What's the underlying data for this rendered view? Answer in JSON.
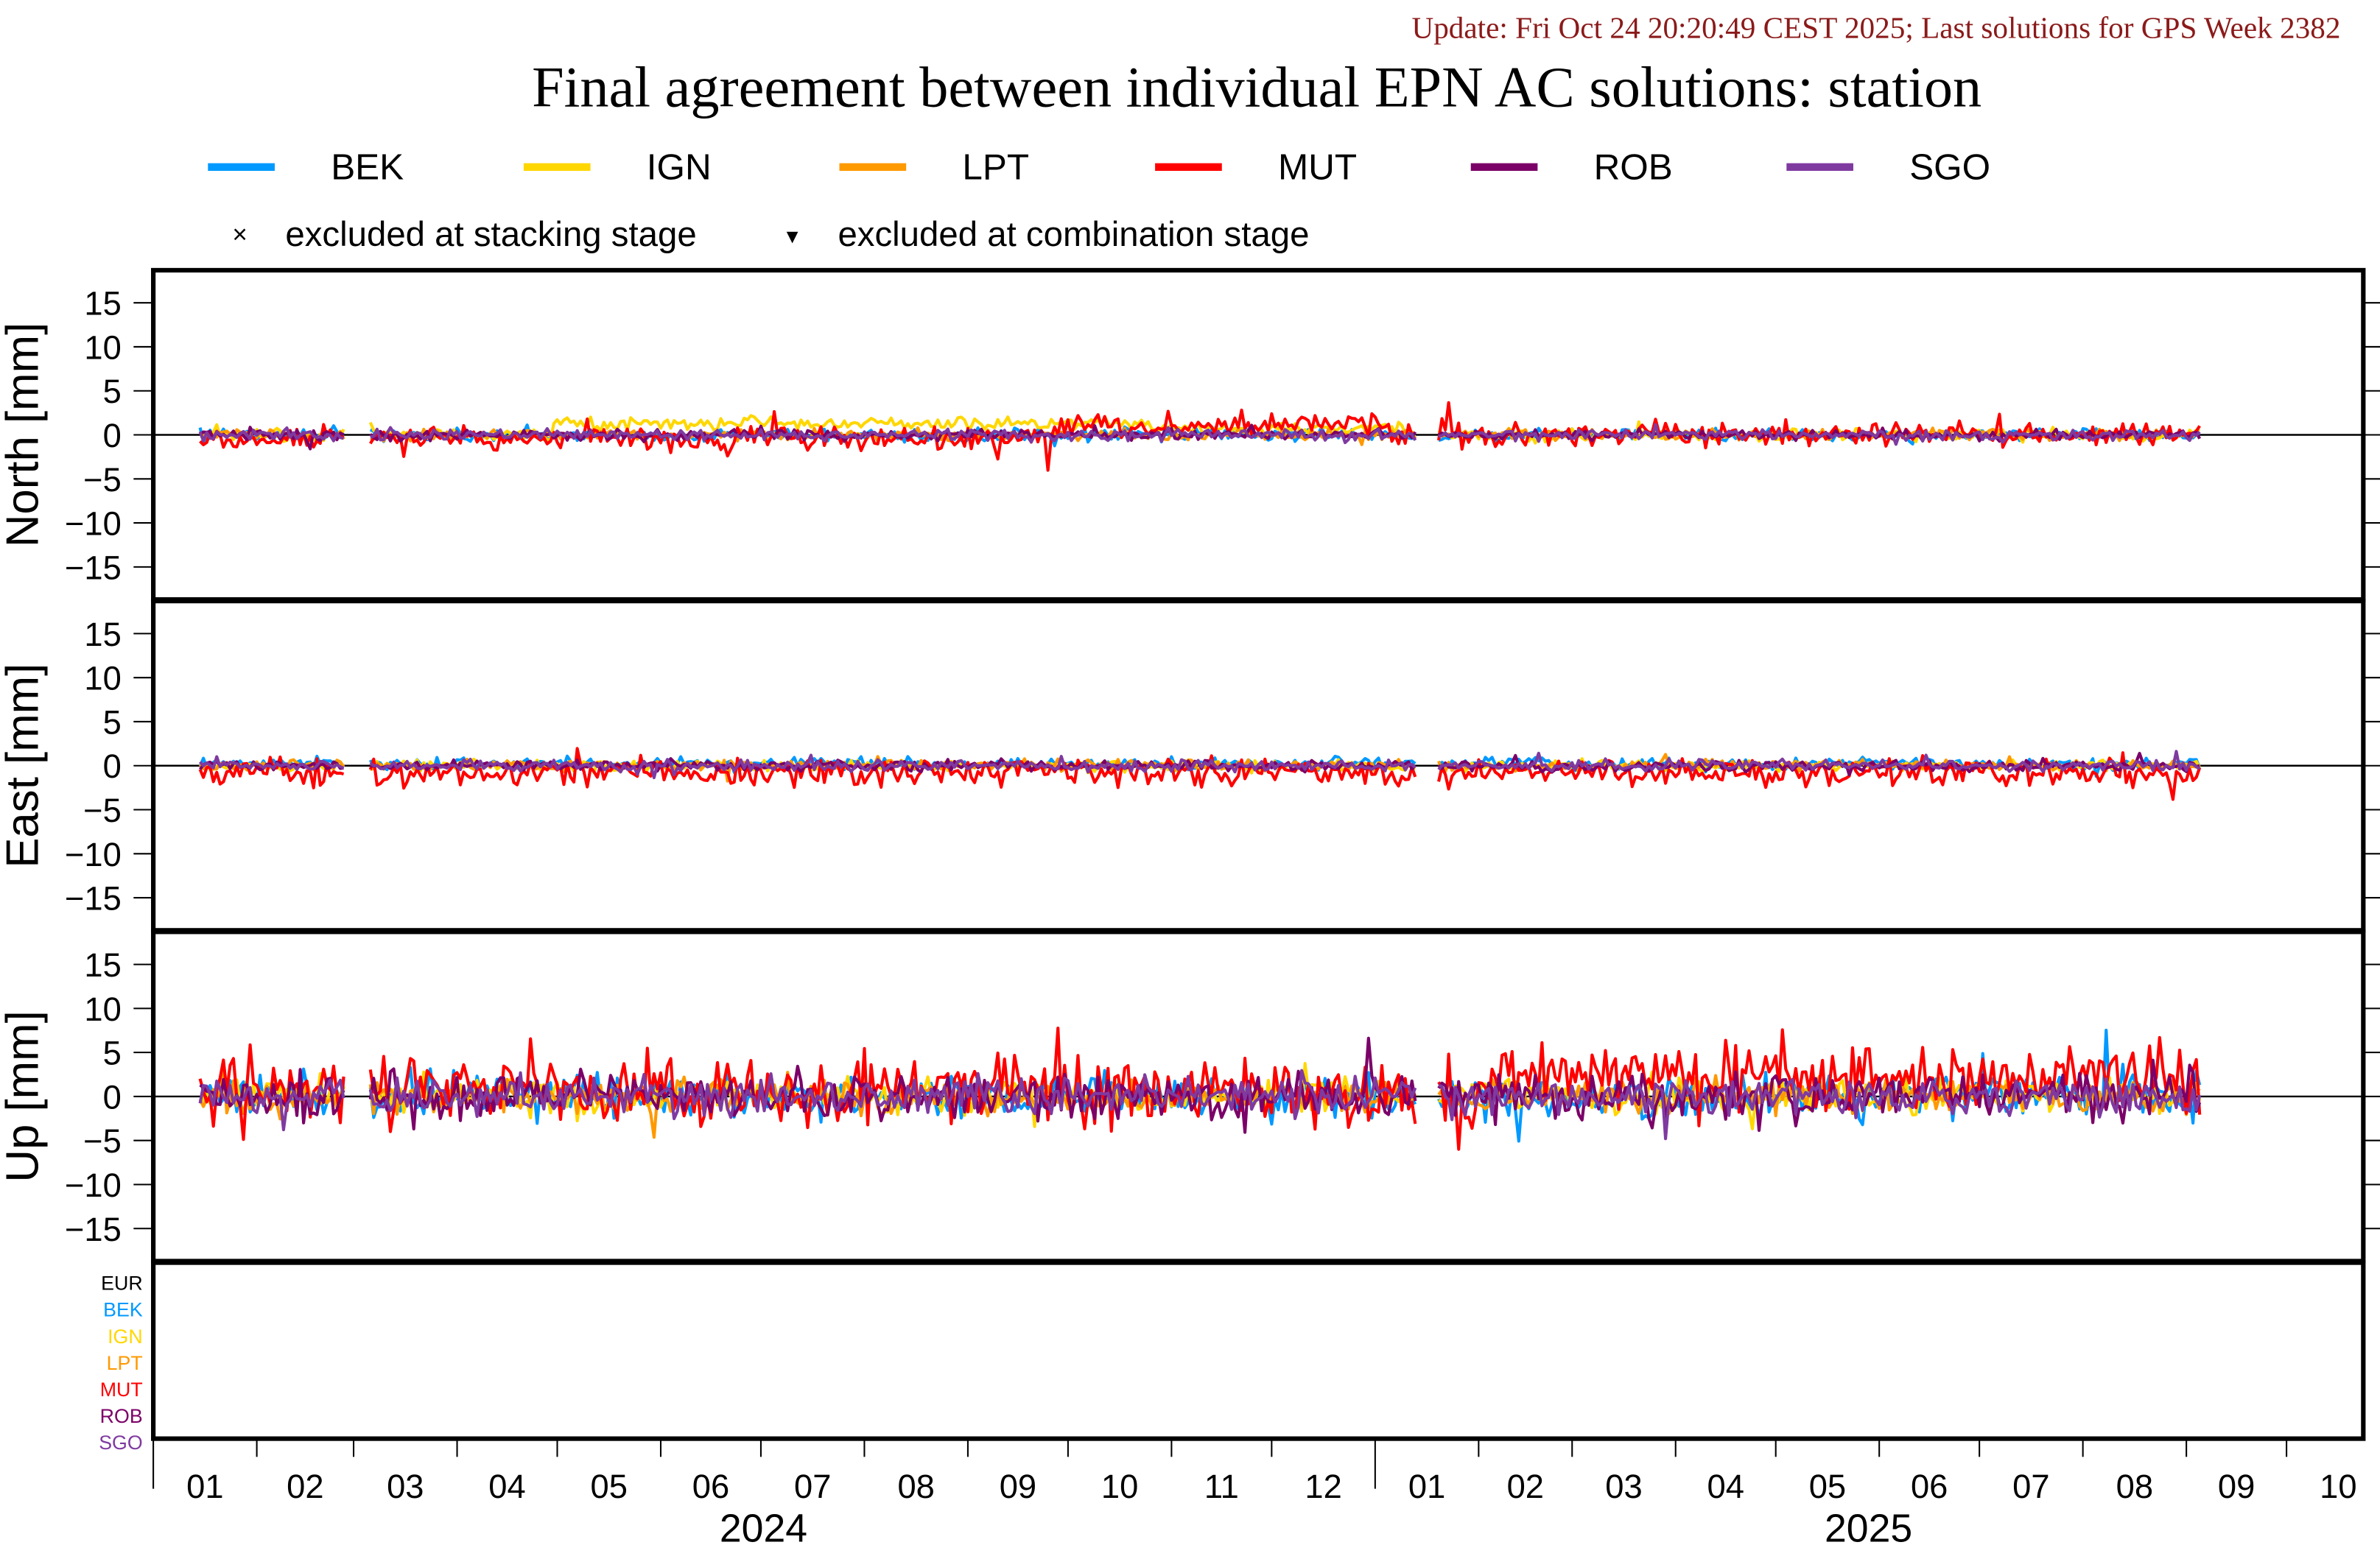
{
  "update": "Update: Fri Oct 24 20:20:49 CEST 2025; Last solutions for GPS Week 2382",
  "title": "Final agreement between individual EPN AC solutions: station",
  "legend": {
    "series": [
      {
        "name": "BEK",
        "color": "#0099ff"
      },
      {
        "name": "IGN",
        "color": "#ffd700"
      },
      {
        "name": "LPT",
        "color": "#ff9900"
      },
      {
        "name": "MUT",
        "color": "#ff0000"
      },
      {
        "name": "ROB",
        "color": "#7b0068"
      },
      {
        "name": "SGO",
        "color": "#7f3aa0"
      }
    ],
    "markers": [
      {
        "symbol": "×",
        "label": "excluded at stacking stage"
      },
      {
        "symbol": "▼",
        "label": "excluded at combination stage"
      }
    ]
  },
  "ac_list": [
    {
      "name": "EUR",
      "color": "#000000"
    },
    {
      "name": "BEK",
      "color": "#0099ff"
    },
    {
      "name": "IGN",
      "color": "#ffd700"
    },
    {
      "name": "LPT",
      "color": "#ff9900"
    },
    {
      "name": "MUT",
      "color": "#ff0000"
    },
    {
      "name": "ROB",
      "color": "#7b0068"
    },
    {
      "name": "SGO",
      "color": "#7f3aa0"
    }
  ],
  "xaxis": {
    "start": "2024-01-01",
    "xlim_days": [
      0,
      662
    ],
    "months": [
      "01",
      "02",
      "03",
      "04",
      "05",
      "06",
      "07",
      "08",
      "09",
      "10",
      "11",
      "12",
      "01",
      "02",
      "03",
      "04",
      "05",
      "06",
      "07",
      "08",
      "09",
      "10"
    ],
    "years": [
      "2024",
      "2025"
    ]
  },
  "chart_data": [
    {
      "type": "line",
      "component": "North",
      "ylabel": "North [mm]",
      "ylim": [
        -18.7,
        18.7
      ],
      "yticks": [
        "15",
        "10",
        "5",
        "0",
        "-5",
        "-10",
        "-15"
      ],
      "day_range": [
        14,
        613
      ],
      "gaps": [
        [
          58,
          64
        ],
        [
          379,
          384
        ]
      ],
      "series": [
        {
          "name": "BEK",
          "noise": 0.35,
          "bias": []
        },
        {
          "name": "IGN",
          "noise": 0.35,
          "bias": [
            [
              120,
              300,
              1.3
            ],
            [
              300,
              375,
              0.8
            ]
          ]
        },
        {
          "name": "LPT",
          "noise": 0.3,
          "bias": []
        },
        {
          "name": "MUT",
          "noise": 0.7,
          "bias": [
            [
              14,
              270,
              -0.5
            ],
            [
              270,
              300,
              1.0
            ],
            [
              300,
              370,
              1.2
            ]
          ]
        },
        {
          "name": "ROB",
          "noise": 0.3,
          "bias": []
        },
        {
          "name": "SGO",
          "noise": 0.3,
          "bias": []
        }
      ]
    },
    {
      "type": "line",
      "component": "East",
      "ylabel": "East [mm]",
      "ylim": [
        -18.7,
        18.7
      ],
      "yticks": [
        "15",
        "10",
        "5",
        "0",
        "-5",
        "-10",
        "-15"
      ],
      "day_range": [
        14,
        613
      ],
      "gaps": [
        [
          58,
          64
        ],
        [
          379,
          384
        ]
      ],
      "series": [
        {
          "name": "BEK",
          "noise": 0.35,
          "bias": [
            [
              14,
              613,
              0.2
            ]
          ]
        },
        {
          "name": "IGN",
          "noise": 0.3,
          "bias": []
        },
        {
          "name": "LPT",
          "noise": 0.3,
          "bias": []
        },
        {
          "name": "MUT",
          "noise": 0.75,
          "bias": [
            [
              14,
              613,
              -0.8
            ]
          ]
        },
        {
          "name": "ROB",
          "noise": 0.3,
          "bias": []
        },
        {
          "name": "SGO",
          "noise": 0.3,
          "bias": []
        }
      ]
    },
    {
      "type": "line",
      "component": "Up",
      "ylabel": "Up [mm]",
      "ylim": [
        -18.7,
        18.7
      ],
      "yticks": [
        "15",
        "10",
        "5",
        "0",
        "-5",
        "-10",
        "-15"
      ],
      "day_range": [
        14,
        613
      ],
      "gaps": [
        [
          58,
          64
        ],
        [
          379,
          384
        ]
      ],
      "series": [
        {
          "name": "BEK",
          "noise": 1.2,
          "bias": []
        },
        {
          "name": "IGN",
          "noise": 1.0,
          "bias": []
        },
        {
          "name": "LPT",
          "noise": 0.9,
          "bias": []
        },
        {
          "name": "MUT",
          "noise": 1.9,
          "bias": [
            [
              14,
              370,
              0.6
            ],
            [
              400,
              613,
              2.0
            ]
          ]
        },
        {
          "name": "ROB",
          "noise": 1.3,
          "bias": []
        },
        {
          "name": "SGO",
          "noise": 1.0,
          "bias": []
        }
      ]
    }
  ]
}
